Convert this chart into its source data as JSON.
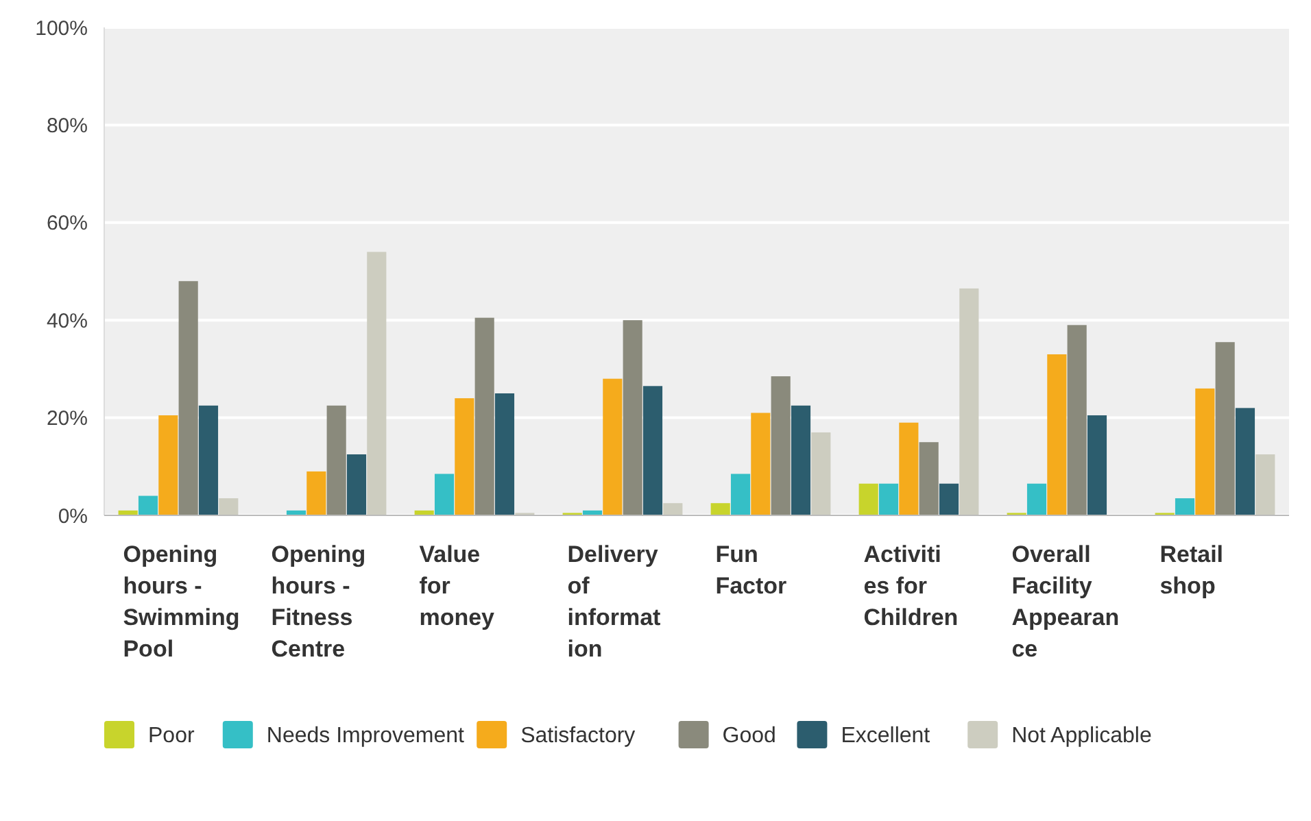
{
  "chart_data": {
    "type": "bar",
    "categories": [
      "Opening hours - Swimming Pool",
      "Opening hours - Fitness Centre",
      "Value for money",
      "Delivery of information",
      "Fun Factor",
      "Activities for Children",
      "Overall Facility Appearance",
      "Retail shop"
    ],
    "series": [
      {
        "name": "Poor",
        "color": "#c8d42c",
        "values": [
          1,
          0,
          1,
          0.5,
          2.5,
          6.5,
          0.5,
          0.5
        ]
      },
      {
        "name": "Needs Improvement",
        "color": "#35bfc6",
        "values": [
          4,
          1,
          8.5,
          1,
          8.5,
          6.5,
          6.5,
          3.5
        ]
      },
      {
        "name": "Satisfactory",
        "color": "#f5ab1c",
        "values": [
          20.5,
          9,
          24,
          28,
          21,
          19,
          33,
          26
        ]
      },
      {
        "name": "Good",
        "color": "#8a8a7c",
        "values": [
          48,
          22.5,
          40.5,
          40,
          28.5,
          15,
          39,
          35.5
        ]
      },
      {
        "name": "Excellent",
        "color": "#2c5d6e",
        "values": [
          22.5,
          12.5,
          25,
          26.5,
          22.5,
          6.5,
          20.5,
          22
        ]
      },
      {
        "name": "Not Applicable",
        "color": "#cdcdc0",
        "values": [
          3.5,
          54,
          0.5,
          2.5,
          17,
          46.5,
          0,
          12.5
        ]
      }
    ],
    "ylim": [
      0,
      100
    ],
    "yticks": [
      {
        "value": 0,
        "label": "0%"
      },
      {
        "value": 20,
        "label": "20%"
      },
      {
        "value": 40,
        "label": "40%"
      },
      {
        "value": 60,
        "label": "60%"
      },
      {
        "value": 80,
        "label": "80%"
      },
      {
        "value": 100,
        "label": "100%"
      }
    ],
    "grid": "y",
    "legend": "bottom"
  }
}
